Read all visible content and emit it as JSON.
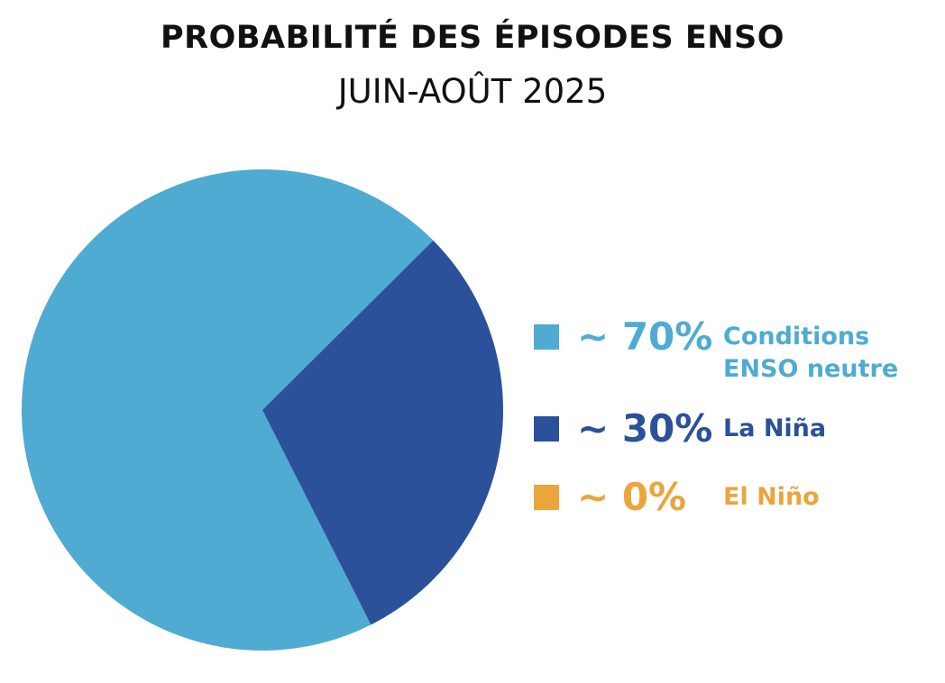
{
  "chart_data": {
    "type": "pie",
    "title": "PROBABILITÉ DES ÉPISODES ENSO",
    "subtitle": "JUIN-AOÛT 2025",
    "series": [
      {
        "name": "Conditions ENSO neutre",
        "color": "#4fabd2",
        "values": [
          70
        ],
        "value_labels": [
          "~ 70%"
        ]
      },
      {
        "name": "La Niña",
        "color": "#2a5199",
        "values": [
          30
        ],
        "value_labels": [
          "~ 30%"
        ]
      },
      {
        "name": "El Niño",
        "color": "#eaa53c",
        "values": [
          0
        ],
        "value_labels": [
          "~ 0%"
        ]
      }
    ],
    "legend": "right"
  }
}
